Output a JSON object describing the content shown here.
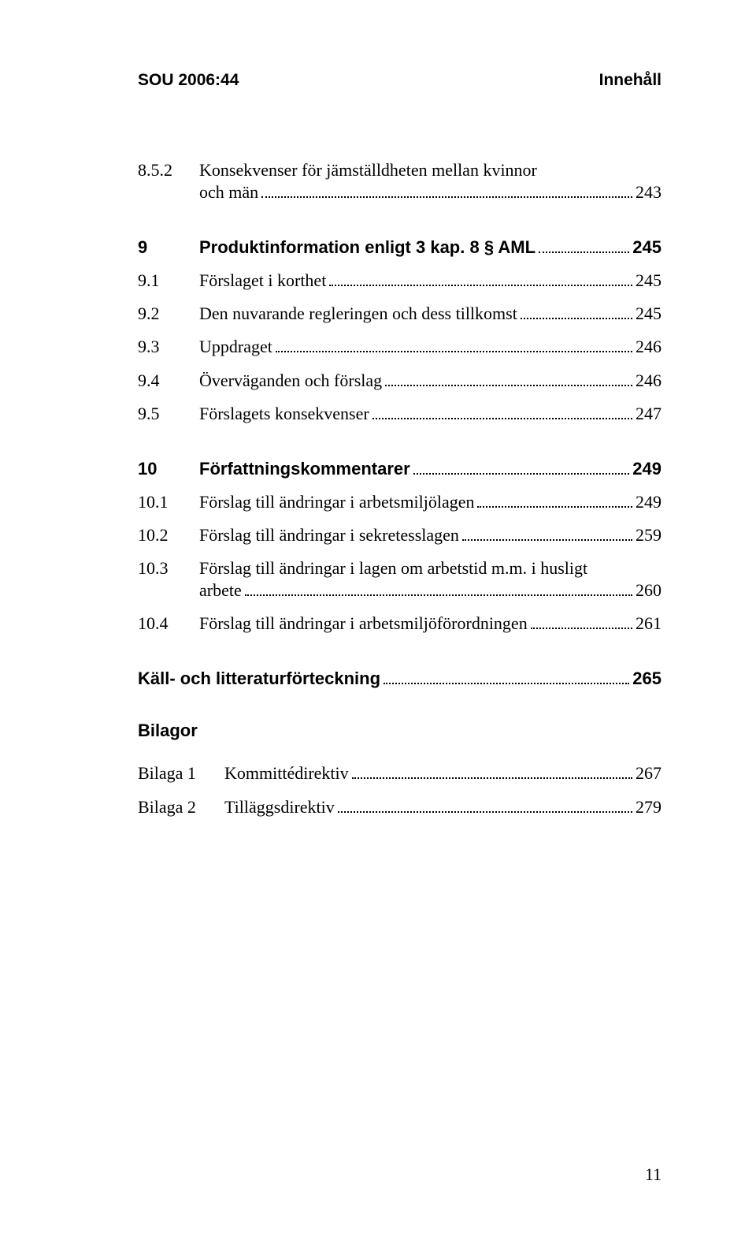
{
  "header": {
    "left": "SOU 2006:44",
    "right": "Innehåll"
  },
  "entries": [
    {
      "type": "multi",
      "num": "8.5.2",
      "label1": "Konsekvenser för jämställdheten mellan kvinnor",
      "label2": "och män",
      "page": "243",
      "bold": false
    },
    {
      "type": "gap"
    },
    {
      "type": "line",
      "num": "9",
      "label": "Produktinformation enligt 3 kap. 8 § AML",
      "page": "245",
      "bold": true
    },
    {
      "type": "line",
      "num": "9.1",
      "label": "Förslaget i korthet",
      "page": "245",
      "bold": false
    },
    {
      "type": "line",
      "num": "9.2",
      "label": "Den nuvarande regleringen och dess tillkomst",
      "page": "245",
      "bold": false
    },
    {
      "type": "line",
      "num": "9.3",
      "label": "Uppdraget",
      "page": "246",
      "bold": false
    },
    {
      "type": "line",
      "num": "9.4",
      "label": "Överväganden och förslag",
      "page": "246",
      "bold": false
    },
    {
      "type": "line",
      "num": "9.5",
      "label": "Förslagets konsekvenser",
      "page": "247",
      "bold": false
    },
    {
      "type": "gap"
    },
    {
      "type": "line",
      "num": "10",
      "label": "Författningskommentarer",
      "page": "249",
      "bold": true
    },
    {
      "type": "line",
      "num": "10.1",
      "label": "Förslag till ändringar i arbetsmiljölagen",
      "page": "249",
      "bold": false
    },
    {
      "type": "line",
      "num": "10.2",
      "label": "Förslag till ändringar i sekretesslagen",
      "page": "259",
      "bold": false
    },
    {
      "type": "multi",
      "num": "10.3",
      "label1": "Förslag till ändringar i lagen om arbetstid m.m. i husligt",
      "label2": "arbete",
      "page": "260",
      "bold": false
    },
    {
      "type": "line",
      "num": "10.4",
      "label": "Förslag till ändringar i arbetsmiljöförordningen",
      "page": "261",
      "bold": false
    },
    {
      "type": "gap"
    },
    {
      "type": "line",
      "num": "",
      "label": "Käll- och litteraturförteckning",
      "page": "265",
      "bold": true,
      "nonum": true
    },
    {
      "type": "gap"
    },
    {
      "type": "title",
      "label": "Bilagor"
    },
    {
      "type": "line",
      "num": "",
      "numlabel": "Bilaga 1",
      "label": "Kommittédirektiv",
      "page": "267",
      "bold": false,
      "bilaga": true
    },
    {
      "type": "line",
      "num": "",
      "numlabel": "Bilaga 2",
      "label": "Tilläggsdirektiv",
      "page": "279",
      "bold": false,
      "bilaga": true
    }
  ],
  "footer_page": "11"
}
